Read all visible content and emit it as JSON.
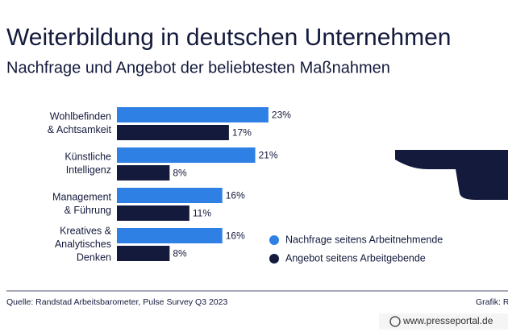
{
  "chart_data": {
    "type": "bar",
    "orientation": "horizontal",
    "title": "Weiterbildung in deutschen Unternehmen",
    "subtitle": "Nachfrage und Angebot der beliebtesten Maßnahmen",
    "categories": [
      [
        "Wohlbefinden",
        "& Achtsamkeit"
      ],
      [
        "Künstliche",
        "Intelligenz"
      ],
      [
        "Management",
        "& Führung"
      ],
      [
        "Kreatives &",
        "Analytisches",
        "Denken"
      ]
    ],
    "series": [
      {
        "name": "Nachfrage seitens Arbeitnehmende",
        "color": "#2f80e4",
        "values": [
          23,
          21,
          16,
          16
        ],
        "value_labels": [
          "23%",
          "21%",
          "16%",
          "16%"
        ]
      },
      {
        "name": "Angebot seitens Arbeitgebende",
        "color": "#141a3c",
        "values": [
          17,
          8,
          11,
          8
        ],
        "value_labels": [
          "17%",
          "8%",
          "11%",
          "8%"
        ]
      }
    ],
    "source": "Quelle: Randstad Arbeitsbarometer, Pulse Survey Q3 2023",
    "credit": "Grafik: R",
    "watermark": "www.presseportal.de"
  }
}
